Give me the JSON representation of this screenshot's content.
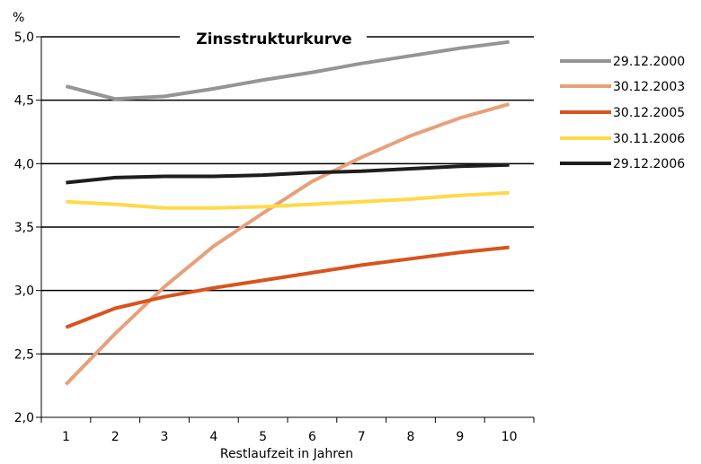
{
  "chart_data": {
    "type": "line",
    "title": "Zinsstrukturkurve",
    "unit_label": "%",
    "xlabel": "Restlaufzeit in Jahren",
    "ylabel": "",
    "categories": [
      "1",
      "2",
      "3",
      "4",
      "5",
      "6",
      "7",
      "8",
      "9",
      "10"
    ],
    "ylim": [
      2.0,
      5.0
    ],
    "ytick_values": [
      2.0,
      2.5,
      3.0,
      3.5,
      4.0,
      4.5,
      5.0
    ],
    "ytick_labels": [
      "2,0",
      "2,5",
      "3,0",
      "3,5",
      "4,0",
      "4,5",
      "5,0"
    ],
    "grid": true,
    "legend_position": "right",
    "series": [
      {
        "name": "29.12.2000",
        "color": "#959595",
        "values": [
          4.61,
          4.51,
          4.53,
          4.59,
          4.66,
          4.72,
          4.79,
          4.85,
          4.91,
          4.96
        ]
      },
      {
        "name": "30.12.2003",
        "color": "#E8A07A",
        "values": [
          2.26,
          2.66,
          3.03,
          3.35,
          3.61,
          3.86,
          4.05,
          4.22,
          4.36,
          4.47
        ]
      },
      {
        "name": "30.12.2005",
        "color": "#D9531E",
        "values": [
          2.71,
          2.86,
          2.95,
          3.02,
          3.08,
          3.14,
          3.2,
          3.25,
          3.3,
          3.34
        ]
      },
      {
        "name": "30.11.2006",
        "color": "#FFD94A",
        "values": [
          3.7,
          3.68,
          3.65,
          3.65,
          3.66,
          3.68,
          3.7,
          3.72,
          3.75,
          3.77
        ]
      },
      {
        "name": "29.12.2006",
        "color": "#1E1E1E",
        "values": [
          3.85,
          3.89,
          3.9,
          3.9,
          3.91,
          3.93,
          3.94,
          3.96,
          3.98,
          3.99
        ]
      }
    ]
  }
}
